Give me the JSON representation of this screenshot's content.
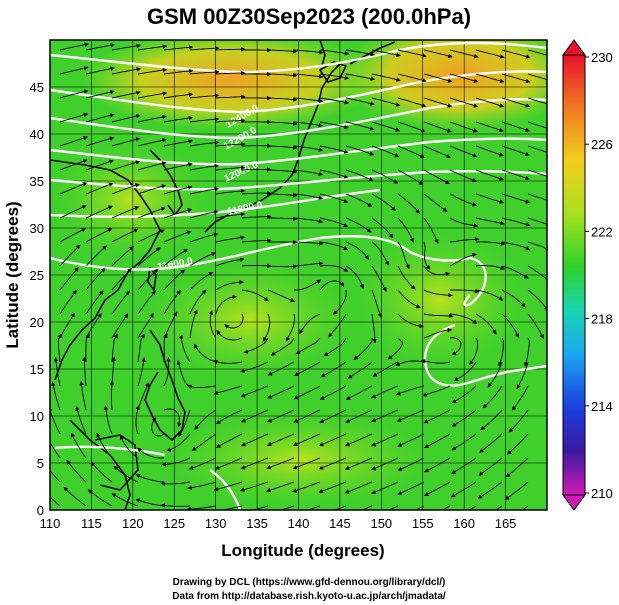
{
  "title": "GSM 00Z30Sep2023 (200.0hPa)",
  "xlabel": "Longitude (degrees)",
  "ylabel": "Latitude (degrees)",
  "credit_line1": "Drawing by DCL (https://www.gfd-dennou.org/library/dcl/)",
  "credit_line2": "Data from http://database.rish.kyoto-u.ac.jp/arch/jmadata/",
  "map": {
    "lon_range": [
      110,
      170
    ],
    "lat_range": [
      0,
      50
    ],
    "lon_ticks": [
      "110",
      "115",
      "120",
      "125",
      "130",
      "135",
      "140",
      "145",
      "150",
      "155",
      "160",
      "165"
    ],
    "lat_ticks": [
      "0",
      "5",
      "10",
      "15",
      "20",
      "25",
      "30",
      "35",
      "40",
      "45"
    ],
    "grid": true,
    "field": "200 hPa temperature (shaded) with streamlines and white height contours",
    "contour_labels": [
      "12400.0",
      "12200.0",
      "12000.0",
      "11800.0",
      "11600.0"
    ]
  },
  "colorbar": {
    "tick_labels": [
      "230",
      "226",
      "222",
      "218",
      "214",
      "210"
    ],
    "colors": [
      "#e8112d",
      "#f47a1f",
      "#f6d31a",
      "#b9e81c",
      "#2fd62a",
      "#18d6a8",
      "#1aa9f0",
      "#1b46e0",
      "#2a1aa8",
      "#c81ab0"
    ]
  },
  "palette": {
    "green": "#33cc33",
    "yellow_green": "#a8e01e",
    "yellow": "#e8d01e",
    "orange": "#f0a020",
    "contour": "#ffffff",
    "stream": "#000000"
  }
}
